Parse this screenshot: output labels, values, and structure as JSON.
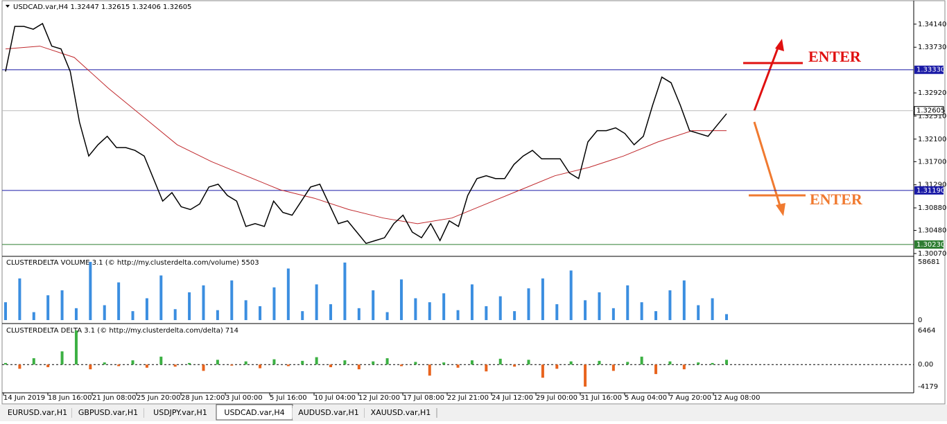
{
  "header": "USDCAD.var,H4  1.32447 1.32615 1.32406 1.32605",
  "price_panel": {
    "ylim": [
      1.3002,
      1.3447
    ],
    "yticks": [
      {
        "value": 1.3414,
        "label": "1.34140"
      },
      {
        "value": 1.3373,
        "label": "1.33730"
      },
      {
        "value": 1.3292,
        "label": "1.32920"
      },
      {
        "value": 1.3251,
        "label": "1.32510"
      },
      {
        "value": 1.321,
        "label": "1.32100"
      },
      {
        "value": 1.317,
        "label": "1.31700"
      },
      {
        "value": 1.3129,
        "label": "1.31290"
      },
      {
        "value": 1.3088,
        "label": "1.30880"
      },
      {
        "value": 1.3048,
        "label": "1.30480"
      },
      {
        "value": 1.3007,
        "label": "1.30070"
      }
    ],
    "close": [
      1.333,
      1.341,
      1.341,
      1.3405,
      1.3415,
      1.3375,
      1.337,
      1.333,
      1.324,
      1.318,
      1.32,
      1.3215,
      1.3195,
      1.3195,
      1.319,
      1.318,
      1.314,
      1.31,
      1.3115,
      1.309,
      1.3085,
      1.3095,
      1.3125,
      1.313,
      1.311,
      1.31,
      1.3055,
      1.306,
      1.3055,
      1.31,
      1.308,
      1.3075,
      1.31,
      1.3125,
      1.313,
      1.3095,
      1.306,
      1.3065,
      1.3045,
      1.3025,
      1.303,
      1.3035,
      1.306,
      1.3075,
      1.3045,
      1.3035,
      1.306,
      1.303,
      1.3065,
      1.3055,
      1.311,
      1.314,
      1.3145,
      1.314,
      1.314,
      1.3165,
      1.318,
      1.319,
      1.3175,
      1.3175,
      1.3175,
      1.315,
      1.314,
      1.3205,
      1.3225,
      1.3225,
      1.323,
      1.322,
      1.32,
      1.3215,
      1.327,
      1.332,
      1.331,
      1.327,
      1.3225,
      1.322,
      1.3215,
      1.3235,
      1.3255
    ],
    "ma": [
      1.337,
      1.3375,
      1.3355,
      1.33,
      1.325,
      1.32,
      1.317,
      1.3145,
      1.312,
      1.3105,
      1.3085,
      1.307,
      1.306,
      1.307,
      1.3095,
      1.312,
      1.3145,
      1.316,
      1.318,
      1.3205,
      1.3225,
      1.3225
    ],
    "levels": [
      {
        "value": 1.3333,
        "label": "1.33330",
        "color": "#1a1aa6"
      },
      {
        "value": 1.3119,
        "label": "1.31190",
        "color": "#1a1aa6"
      },
      {
        "value": 1.3023,
        "label": "1.30230",
        "color": "#2e7d32"
      }
    ],
    "current": {
      "value": 1.32605,
      "label": "1.32605"
    },
    "annotations": [
      "ENTER",
      "ENTER"
    ]
  },
  "volume_panel": {
    "title": "CLUSTERDELTA VOLUME 3.1 (© http://my.clusterdelta.com/volume) 5503",
    "ylim": [
      0,
      58681
    ],
    "yticks": [
      58681,
      0
    ],
    "color": "#3b8ee0",
    "values": [
      18000,
      42000,
      8000,
      25000,
      30000,
      12000,
      58681,
      15000,
      38000,
      9000,
      22000,
      45000,
      11000,
      28000,
      35000,
      10000,
      40000,
      20000,
      14000,
      33000,
      52000,
      9000,
      36000,
      16000,
      58000,
      12000,
      30000,
      8000,
      41000,
      22000,
      18000,
      27000,
      10000,
      36000,
      14000,
      24000,
      9000,
      32000,
      42000,
      16000,
      50000,
      20000,
      28000,
      12000,
      35000,
      18000,
      9000,
      30000,
      40000,
      15000,
      22000,
      6000
    ]
  },
  "delta_panel": {
    "title": "CLUSTERDELTA DELTA 3.1 (© http://my.clusterdelta.com/delta) 714",
    "ylim": [
      -4179,
      6464
    ],
    "yticks": [
      6464,
      {
        "value": 0,
        "label": "0.00"
      },
      -4179
    ],
    "up_color": "#3cb043",
    "down_color": "#e8641e",
    "values": [
      300,
      -800,
      1200,
      -500,
      2500,
      6464,
      -900,
      400,
      -300,
      800,
      -600,
      1500,
      -400,
      300,
      -1200,
      900,
      -200,
      600,
      -700,
      1000,
      -300,
      700,
      1400,
      -500,
      800,
      -900,
      600,
      1200,
      -300,
      500,
      -2100,
      400,
      -600,
      800,
      -1300,
      1100,
      -400,
      900,
      -2500,
      -800,
      600,
      -4179,
      700,
      -1200,
      500,
      1500,
      -1800,
      600,
      -900,
      400,
      300,
      900
    ]
  },
  "time_labels": [
    "14 Jun 2019",
    "18 Jun 16:00",
    "21 Jun 08:00",
    "25 Jun 20:00",
    "28 Jun 12:00",
    "3 Jul 00:00",
    "5 Jul 16:00",
    "10 Jul 04:00",
    "12 Jul 20:00",
    "17 Jul 08:00",
    "22 Jul 21:00",
    "24 Jul 12:00",
    "29 Jul 00:00",
    "31 Jul 16:00",
    "5 Aug 04:00",
    "7 Aug 20:00",
    "12 Aug 08:00"
  ],
  "tabs": [
    "EURUSD.var,H1",
    "GBPUSD.var,H1",
    "USDJPY.var,H1",
    "USDCAD.var,H4",
    "AUDUSD.var,H1",
    "XAUUSD.var,H1"
  ],
  "active_tab": 3
}
